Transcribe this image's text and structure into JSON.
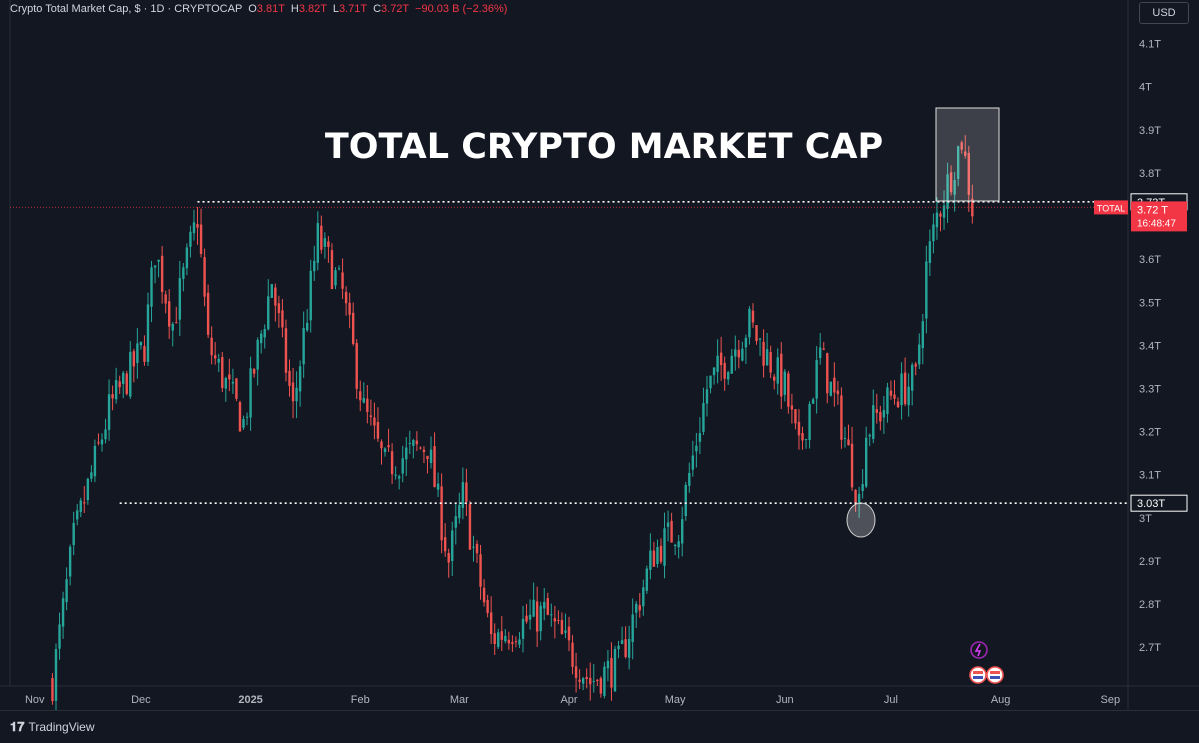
{
  "header": {
    "symbol": "Crypto Total Market Cap, $ · 1D · CRYPTOCAP",
    "o_label": "O",
    "o_value": "3.81T",
    "h_label": "H",
    "h_value": "3.82T",
    "l_label": "L",
    "l_value": "3.71T",
    "c_label": "C",
    "c_value": "3.72T",
    "change": "−90.03 B (−2.36%)"
  },
  "currency_button": "USD",
  "footer": {
    "brand": "TradingView"
  },
  "colors": {
    "up": "#26a69a",
    "down": "#ef5350",
    "bg": "#131722",
    "grid": "#2a2e39",
    "price_tag": "#f23645"
  },
  "chart_data": {
    "type": "candlestick",
    "title": "TOTAL CRYPTO MARKET CAP",
    "x_ticks": [
      "Nov",
      "Dec",
      "2025",
      "Feb",
      "Mar",
      "Apr",
      "May",
      "Jun",
      "Jul",
      "Aug",
      "Sep"
    ],
    "y_ticks": [
      "2.7T",
      "2.8T",
      "2.9T",
      "3T",
      "3.1T",
      "3.2T",
      "3.3T",
      "3.4T",
      "3.5T",
      "3.6T",
      "3.7T",
      "3.8T",
      "3.9T",
      "4T",
      "4.1T"
    ],
    "ylim": [
      2.61,
      4.15
    ],
    "grid": false,
    "levels": [
      {
        "label": "3.73T",
        "value": 3.733
      },
      {
        "label": "3.03T",
        "value": 3.034
      }
    ],
    "current_price": {
      "symbol": "TOTAL",
      "value_label": "3.72 T",
      "countdown": "16:48:47",
      "value": 3.72
    },
    "key_points": [
      {
        "date": "2024-11-06",
        "close": 2.62
      },
      {
        "date": "2024-11-12",
        "close": 2.95
      },
      {
        "date": "2024-11-22",
        "close": 3.25
      },
      {
        "date": "2024-12-02",
        "close": 3.4
      },
      {
        "date": "2024-12-05",
        "close": 3.62
      },
      {
        "date": "2024-12-10",
        "close": 3.45
      },
      {
        "date": "2024-12-17",
        "close": 3.7
      },
      {
        "date": "2024-12-20",
        "close": 3.4
      },
      {
        "date": "2024-12-30",
        "close": 3.22
      },
      {
        "date": "2025-01-07",
        "close": 3.55
      },
      {
        "date": "2025-01-13",
        "close": 3.25
      },
      {
        "date": "2025-01-20",
        "close": 3.65
      },
      {
        "date": "2025-01-27",
        "close": 3.52
      },
      {
        "date": "2025-02-02",
        "close": 3.25
      },
      {
        "date": "2025-02-08",
        "close": 3.12
      },
      {
        "date": "2025-02-20",
        "close": 3.17
      },
      {
        "date": "2025-02-26",
        "close": 2.9
      },
      {
        "date": "2025-03-02",
        "close": 3.05
      },
      {
        "date": "2025-03-10",
        "close": 2.72
      },
      {
        "date": "2025-03-25",
        "close": 2.78
      },
      {
        "date": "2025-04-07",
        "close": 2.62
      },
      {
        "date": "2025-04-15",
        "close": 2.66
      },
      {
        "date": "2025-04-25",
        "close": 2.92
      },
      {
        "date": "2025-05-02",
        "close": 2.98
      },
      {
        "date": "2025-05-10",
        "close": 3.3
      },
      {
        "date": "2025-05-22",
        "close": 3.45
      },
      {
        "date": "2025-06-01",
        "close": 3.3
      },
      {
        "date": "2025-06-05",
        "close": 3.15
      },
      {
        "date": "2025-06-11",
        "close": 3.38
      },
      {
        "date": "2025-06-17",
        "close": 3.22
      },
      {
        "date": "2025-06-22",
        "close": 3.04
      },
      {
        "date": "2025-06-24",
        "close": 3.2
      },
      {
        "date": "2025-07-01",
        "close": 3.28
      },
      {
        "date": "2025-07-08",
        "close": 3.32
      },
      {
        "date": "2025-07-11",
        "close": 3.58
      },
      {
        "date": "2025-07-14",
        "close": 3.7
      },
      {
        "date": "2025-07-18",
        "close": 3.8
      },
      {
        "date": "2025-07-21",
        "close": 3.88
      },
      {
        "date": "2025-07-24",
        "close": 3.72
      }
    ]
  }
}
